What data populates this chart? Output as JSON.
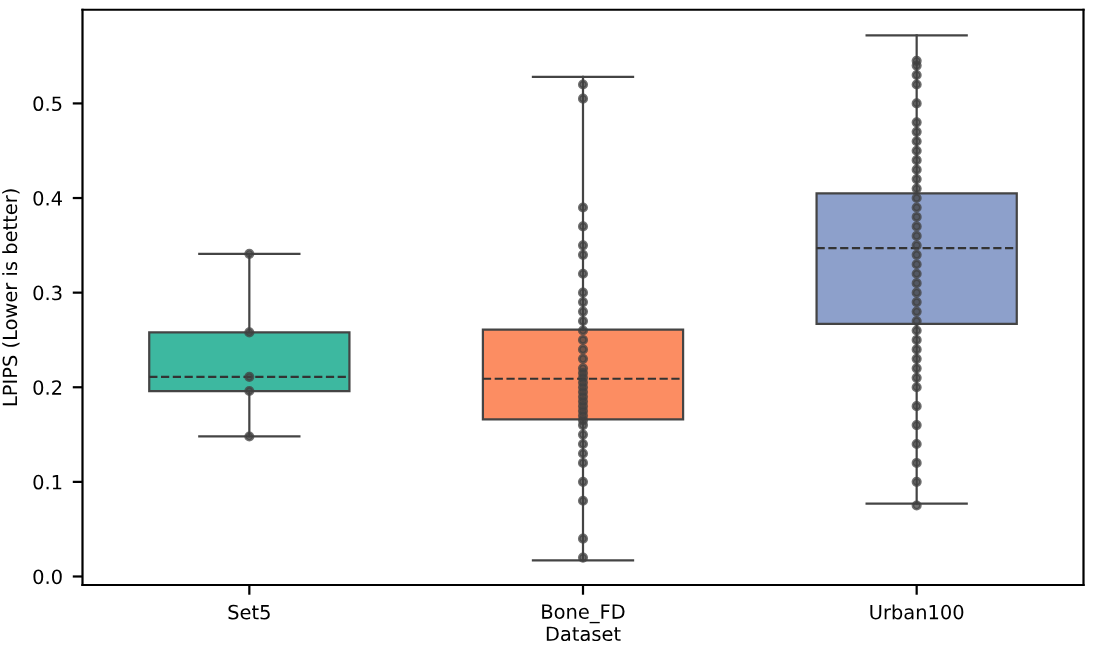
{
  "chart_data": {
    "type": "box",
    "xlabel": "Dataset",
    "ylabel": "LPIPS (Lower is better)",
    "categories": [
      "Set5",
      "Bone_FD",
      "Urban100"
    ],
    "colors": [
      "#3db8a0",
      "#fc8d62",
      "#8da0cb"
    ],
    "boxes": [
      {
        "low": 0.148,
        "q1": 0.196,
        "median": 0.211,
        "q3": 0.258,
        "high": 0.341
      },
      {
        "low": 0.017,
        "q1": 0.166,
        "median": 0.209,
        "q3": 0.261,
        "high": 0.528
      },
      {
        "low": 0.077,
        "q1": 0.267,
        "median": 0.347,
        "q3": 0.405,
        "high": 0.572
      }
    ],
    "series": [
      {
        "type": "scatter",
        "color": "#404040",
        "x": [
          "Set5",
          "Set5",
          "Set5",
          "Set5",
          "Set5",
          "Bone_FD",
          "Bone_FD",
          "Bone_FD",
          "Bone_FD",
          "Bone_FD",
          "Bone_FD",
          "Bone_FD",
          "Bone_FD",
          "Bone_FD",
          "Bone_FD",
          "Bone_FD",
          "Bone_FD",
          "Bone_FD",
          "Bone_FD",
          "Bone_FD",
          "Bone_FD",
          "Bone_FD",
          "Bone_FD",
          "Bone_FD",
          "Bone_FD",
          "Bone_FD",
          "Bone_FD",
          "Bone_FD",
          "Bone_FD",
          "Bone_FD",
          "Bone_FD",
          "Bone_FD",
          "Bone_FD",
          "Bone_FD",
          "Bone_FD",
          "Bone_FD",
          "Bone_FD",
          "Bone_FD",
          "Bone_FD",
          "Bone_FD",
          "Bone_FD",
          "Urban100",
          "Urban100",
          "Urban100",
          "Urban100",
          "Urban100",
          "Urban100",
          "Urban100",
          "Urban100",
          "Urban100",
          "Urban100",
          "Urban100",
          "Urban100",
          "Urban100",
          "Urban100",
          "Urban100",
          "Urban100",
          "Urban100",
          "Urban100",
          "Urban100",
          "Urban100",
          "Urban100",
          "Urban100",
          "Urban100",
          "Urban100",
          "Urban100",
          "Urban100",
          "Urban100",
          "Urban100",
          "Urban100",
          "Urban100",
          "Urban100",
          "Urban100",
          "Urban100",
          "Urban100",
          "Urban100",
          "Urban100",
          "Urban100",
          "Urban100",
          "Urban100",
          "Urban100"
        ],
        "values": [
          0.341,
          0.258,
          0.211,
          0.196,
          0.148,
          0.52,
          0.505,
          0.39,
          0.37,
          0.35,
          0.34,
          0.32,
          0.3,
          0.29,
          0.28,
          0.27,
          0.26,
          0.25,
          0.24,
          0.23,
          0.22,
          0.215,
          0.21,
          0.205,
          0.2,
          0.195,
          0.19,
          0.185,
          0.18,
          0.175,
          0.17,
          0.165,
          0.16,
          0.15,
          0.14,
          0.13,
          0.12,
          0.1,
          0.08,
          0.04,
          0.02,
          0.545,
          0.54,
          0.53,
          0.52,
          0.5,
          0.48,
          0.47,
          0.46,
          0.45,
          0.44,
          0.43,
          0.42,
          0.41,
          0.4,
          0.39,
          0.38,
          0.37,
          0.36,
          0.35,
          0.34,
          0.33,
          0.32,
          0.31,
          0.3,
          0.29,
          0.28,
          0.27,
          0.26,
          0.25,
          0.24,
          0.23,
          0.22,
          0.21,
          0.2,
          0.18,
          0.16,
          0.14,
          0.12,
          0.1,
          0.075
        ]
      }
    ],
    "marker": "circle",
    "ylim": [
      -0.009,
      0.599
    ],
    "yticks": [
      {
        "value": 0,
        "label": "0.0"
      },
      0.1,
      0.2,
      0.3,
      0.4,
      0.5
    ],
    "grid": false
  }
}
